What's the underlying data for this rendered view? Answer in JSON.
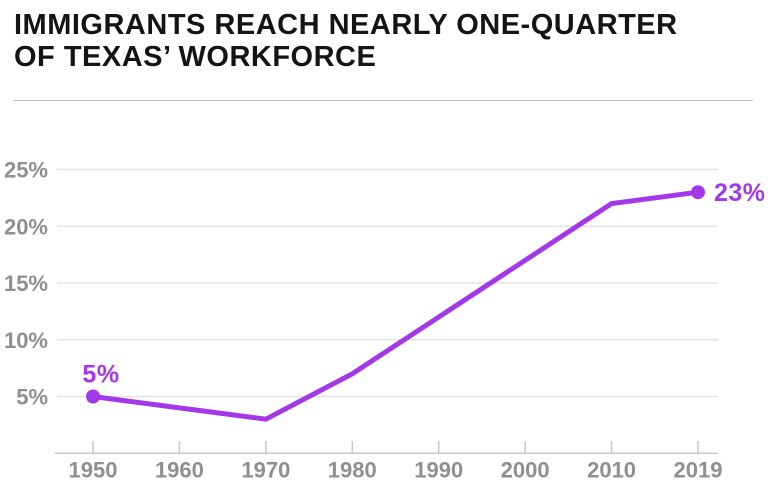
{
  "header": {
    "title_lines": [
      "IMMIGRANTS REACH NEARLY ONE-QUARTER",
      "OF TEXAS’ WORKFORCE"
    ]
  },
  "chart_data": {
    "type": "line",
    "title": "IMMIGRANTS REACH NEARLY ONE-QUARTER OF TEXAS’ WORKFORCE",
    "categories": [
      "1950",
      "1960",
      "1970",
      "1980",
      "1990",
      "2000",
      "2010",
      "2019"
    ],
    "values": [
      5,
      4,
      3,
      7,
      12,
      17,
      22,
      23
    ],
    "unit": "%",
    "xlabel": "",
    "ylabel": "",
    "ylim": [
      0,
      27
    ],
    "yticks": [
      {
        "value": 5,
        "label": "5%"
      },
      {
        "value": 10,
        "label": "10%"
      },
      {
        "value": 15,
        "label": "15%"
      },
      {
        "value": 20,
        "label": "20%"
      },
      {
        "value": 25,
        "label": "25%"
      }
    ],
    "grid": true,
    "legend": false,
    "line_color": "#a338e8",
    "point_markers": [
      0,
      7
    ],
    "point_labels": [
      {
        "index": 0,
        "text": "5%",
        "position": "above"
      },
      {
        "index": 7,
        "text": "23%",
        "position": "right"
      }
    ]
  },
  "colors": {
    "accent_purple": "#a338e8",
    "title_text": "#141414",
    "axis_label": "#8f8f8f",
    "gridline": "#e3e3e3",
    "axis_line": "#c9c9c9",
    "divider": "#bdbdbd",
    "background": "#ffffff"
  }
}
